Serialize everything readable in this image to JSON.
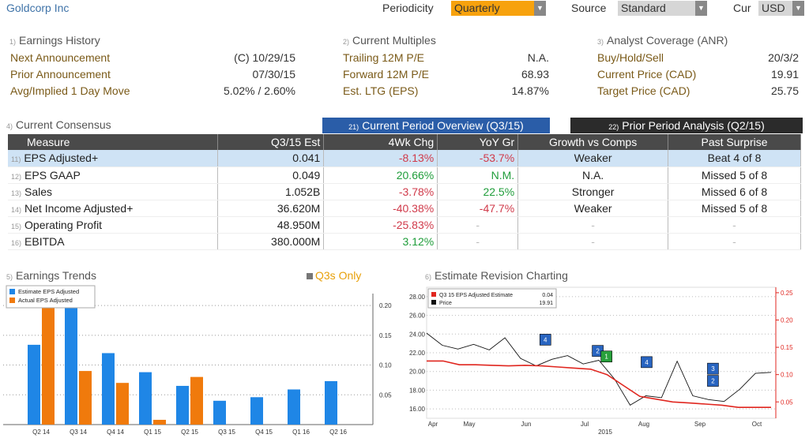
{
  "topbar": {
    "ticker": "Goldcorp Inc",
    "periodicity_label": "Periodicity",
    "periodicity_value": "Quarterly",
    "source_label": "Source",
    "source_value": "Standard",
    "cur_label": "Cur",
    "cur_value": "USD"
  },
  "earnings_history": {
    "num": "1)",
    "title": "Earnings History",
    "rows": [
      {
        "label": "Next Announcement",
        "value": "(C)  10/29/15"
      },
      {
        "label": "Prior Announcement",
        "value": "07/30/15"
      },
      {
        "label": "Avg/Implied 1 Day Move",
        "value": "5.02% / 2.60%"
      }
    ]
  },
  "current_multiples": {
    "num": "2)",
    "title": "Current Multiples",
    "rows": [
      {
        "label": "Trailing 12M P/E",
        "value": "N.A."
      },
      {
        "label": "Forward 12M P/E",
        "value": "68.93"
      },
      {
        "label": "Est. LTG (EPS)",
        "value": "14.87%"
      }
    ]
  },
  "analyst_coverage": {
    "num": "3)",
    "title": "Analyst Coverage (ANR)",
    "rows": [
      {
        "label": "Buy/Hold/Sell",
        "value": "20/3/2"
      },
      {
        "label": "Current Price (CAD)",
        "value": "19.91"
      },
      {
        "label": "Target Price (CAD)",
        "value": "25.75"
      }
    ]
  },
  "consensus": {
    "num": "4)",
    "title": "Current Consensus",
    "tab_current": {
      "num": "21)",
      "label": "Current Period Overview (Q3/15)"
    },
    "tab_prior": {
      "num": "22)",
      "label": "Prior Period Analysis (Q2/15)"
    },
    "headers": [
      "Measure",
      "Q3/15 Est",
      "4Wk Chg",
      "YoY Gr",
      "Growth vs Comps",
      "Past Surprise"
    ],
    "rows": [
      {
        "num": "11)",
        "measure": "EPS Adjusted+",
        "est": "0.041",
        "chg": "-8.13%",
        "yoy": "-53.7%",
        "comps": "Weaker",
        "surprise": "Beat 4 of 8"
      },
      {
        "num": "12)",
        "measure": "EPS GAAP",
        "est": "0.049",
        "chg": "20.66%",
        "yoy": "N.M.",
        "comps": "N.A.",
        "surprise": "Missed 5 of 8"
      },
      {
        "num": "13)",
        "measure": "Sales",
        "est": "1.052B",
        "chg": "-3.78%",
        "yoy": "22.5%",
        "comps": "Stronger",
        "surprise": "Missed 6 of 8"
      },
      {
        "num": "14)",
        "measure": "Net Income Adjusted+",
        "est": "36.620M",
        "chg": "-40.38%",
        "yoy": "-47.7%",
        "comps": "Weaker",
        "surprise": "Missed 5 of 8"
      },
      {
        "num": "15)",
        "measure": "Operating Profit",
        "est": "48.950M",
        "chg": "-25.83%",
        "yoy": "-",
        "comps": "-",
        "surprise": "-"
      },
      {
        "num": "16)",
        "measure": "EBITDA",
        "est": "380.000M",
        "chg": "3.12%",
        "yoy": "-",
        "comps": "-",
        "surprise": "-"
      }
    ]
  },
  "earnings_trends": {
    "num": "5)",
    "title": "Earnings Trends",
    "q3s_only": "Q3s Only"
  },
  "estimate_revision": {
    "num": "6)",
    "title": "Estimate Revision Charting"
  },
  "chart_data": [
    {
      "type": "bar",
      "categories": [
        "Q2 14",
        "Q3 14",
        "Q4 14",
        "Q1 15",
        "Q2 15",
        "Q3 15",
        "Q4 15",
        "Q1 16",
        "Q2 16"
      ],
      "series": [
        {
          "name": "Estimate EPS Adjusted",
          "values": [
            0.134,
            0.21,
            0.12,
            0.088,
            0.065,
            0.04,
            0.046,
            0.059,
            0.073
          ]
        },
        {
          "name": "Actual EPS Adjusted",
          "values": [
            0.22,
            0.09,
            0.07,
            0.008,
            0.08,
            null,
            null,
            null,
            null
          ]
        }
      ],
      "yticks": [
        "0.20",
        "0.15",
        "0.10",
        "0.05"
      ],
      "ylim": [
        0,
        0.22
      ],
      "colors": {
        "estimate": "#1f86e6",
        "actual": "#f07a0c"
      },
      "grid": true,
      "legend": "top-left"
    },
    {
      "type": "line",
      "x_labels": [
        "Apr",
        "May",
        "Jun",
        "Jul",
        "Aug",
        "Sep",
        "Oct"
      ],
      "x_year": "2015",
      "left_ticks": [
        "28.00",
        "26.00",
        "24.00",
        "22.00",
        "20.00",
        "18.00",
        "16.00"
      ],
      "left_ylim": [
        15,
        29
      ],
      "right_ticks": [
        "0.25",
        "0.20",
        "0.15",
        "0.10",
        "0.05"
      ],
      "right_ylim": [
        0.02,
        0.26
      ],
      "legend": [
        {
          "name": "Q3 15 EPS Adjusted Estimate",
          "value": "0.04",
          "color": "#e0261f"
        },
        {
          "name": "Price",
          "value": "19.91",
          "color": "#111111"
        }
      ],
      "estimate_series": [
        0.125,
        0.125,
        0.118,
        0.118,
        0.117,
        0.116,
        0.117,
        0.116,
        0.114,
        0.112,
        0.11,
        0.1,
        0.08,
        0.06,
        0.055,
        0.05,
        0.048,
        0.046,
        0.044,
        0.04,
        0.04,
        0.04
      ],
      "price_series": [
        24.1,
        22.8,
        22.4,
        22.9,
        22.3,
        23.6,
        21.4,
        20.6,
        21.3,
        21.7,
        20.8,
        21.2,
        19.2,
        16.4,
        17.4,
        17.2,
        21.1,
        17.4,
        17.0,
        16.8,
        18.1,
        19.8,
        19.91
      ],
      "markers": [
        {
          "label": "4",
          "pos": 0.34,
          "val": 23.4,
          "color": "#2864c0"
        },
        {
          "label": "2",
          "pos": 0.49,
          "val": 22.2,
          "color": "#2864c0"
        },
        {
          "label": "1",
          "pos": 0.515,
          "val": 21.6,
          "color": "#28a03c"
        },
        {
          "label": "4",
          "pos": 0.63,
          "val": 21.0,
          "color": "#2864c0"
        },
        {
          "label": "3",
          "pos": 0.82,
          "val": 20.3,
          "color": "#2864c0"
        },
        {
          "label": "2",
          "pos": 0.82,
          "val": 19.0,
          "color": "#2864c0"
        }
      ]
    }
  ]
}
